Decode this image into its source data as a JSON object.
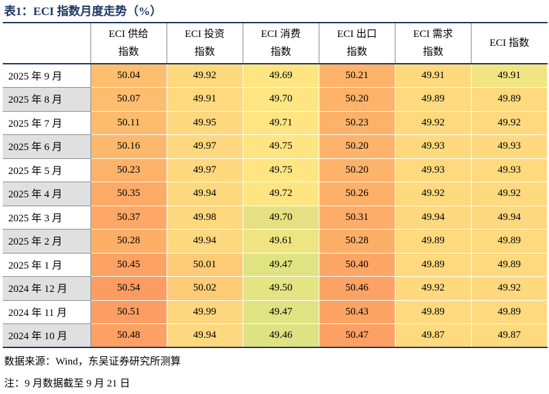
{
  "title": "表1：ECI 指数月度走势（%）",
  "table": {
    "headers": [
      "",
      "ECI 供给\n指数",
      "ECI 投资\n指数",
      "ECI 消费\n指数",
      "ECI 出口\n指数",
      "ECI 需求\n指数",
      "ECI 指数"
    ],
    "rows": [
      {
        "label": "2025 年 9 月",
        "values": [
          "50.04",
          "49.92",
          "49.69",
          "50.21",
          "49.91",
          "49.91"
        ],
        "colors": [
          "#fdbf6f",
          "#fed97e",
          "#fee582",
          "#fdb36a",
          "#fed97e",
          "#f0e582"
        ]
      },
      {
        "label": "2025 年 8 月",
        "values": [
          "50.07",
          "49.91",
          "49.70",
          "50.20",
          "49.89",
          "49.89"
        ],
        "colors": [
          "#fdbd6e",
          "#fed97e",
          "#fee582",
          "#fdb36a",
          "#fed97e",
          "#fed97e"
        ]
      },
      {
        "label": "2025 年 7 月",
        "values": [
          "50.11",
          "49.95",
          "49.71",
          "50.23",
          "49.92",
          "49.92"
        ],
        "colors": [
          "#fdbb6d",
          "#fed87e",
          "#fee582",
          "#fdb26a",
          "#fed97e",
          "#fed97e"
        ]
      },
      {
        "label": "2025 年 6 月",
        "values": [
          "50.16",
          "49.97",
          "49.75",
          "50.20",
          "49.93",
          "49.93"
        ],
        "colors": [
          "#fdb86c",
          "#fed87e",
          "#fee582",
          "#fdb36a",
          "#fed97e",
          "#fed97e"
        ]
      },
      {
        "label": "2025 年 5 月",
        "values": [
          "50.23",
          "49.97",
          "49.75",
          "50.20",
          "49.93",
          "49.93"
        ],
        "colors": [
          "#fdb26a",
          "#fed87e",
          "#fee582",
          "#fdb36a",
          "#fed97e",
          "#fed97e"
        ]
      },
      {
        "label": "2025 年 4 月",
        "values": [
          "50.35",
          "49.94",
          "49.72",
          "50.26",
          "49.92",
          "49.92"
        ],
        "colors": [
          "#fdaa67",
          "#fed87e",
          "#fee582",
          "#fdb069",
          "#fed97e",
          "#fed97e"
        ]
      },
      {
        "label": "2025 年 3 月",
        "values": [
          "50.37",
          "49.98",
          "49.70",
          "50.31",
          "49.94",
          "49.94"
        ],
        "colors": [
          "#fda866",
          "#fed77e",
          "#e6e082",
          "#fdad68",
          "#fed87e",
          "#fed87e"
        ]
      },
      {
        "label": "2025 年 2 月",
        "values": [
          "50.28",
          "49.94",
          "49.61",
          "50.28",
          "49.89",
          "49.89"
        ],
        "colors": [
          "#fdaf68",
          "#fed87e",
          "#eee482",
          "#fdaf68",
          "#fed97e",
          "#fed97e"
        ]
      },
      {
        "label": "2025 年 1 月",
        "values": [
          "50.45",
          "50.01",
          "49.47",
          "50.40",
          "49.89",
          "49.89"
        ],
        "colors": [
          "#fca264",
          "#fdcb76",
          "#e0e382",
          "#fca665",
          "#fed97e",
          "#fed97e"
        ]
      },
      {
        "label": "2024 年 12 月",
        "values": [
          "50.54",
          "50.02",
          "49.50",
          "50.46",
          "49.92",
          "49.92"
        ],
        "colors": [
          "#fc9c62",
          "#fdcb76",
          "#e4e482",
          "#fca264",
          "#fed97e",
          "#fed97e"
        ]
      },
      {
        "label": "2024 年 11 月",
        "values": [
          "50.51",
          "49.99",
          "49.47",
          "50.43",
          "49.89",
          "49.89"
        ],
        "colors": [
          "#fc9e63",
          "#fed67d",
          "#e0e382",
          "#fca464",
          "#fed97e",
          "#fed97e"
        ]
      },
      {
        "label": "2024 年 10 月",
        "values": [
          "50.48",
          "49.94",
          "49.46",
          "50.47",
          "49.87",
          "49.87"
        ],
        "colors": [
          "#fca063",
          "#fed87e",
          "#dee282",
          "#fca163",
          "#feda7e",
          "#feda7e"
        ]
      }
    ]
  },
  "source": "数据来源：Wind，东吴证券研究所测算",
  "note": "注：9 月数据截至 9 月 21 日"
}
